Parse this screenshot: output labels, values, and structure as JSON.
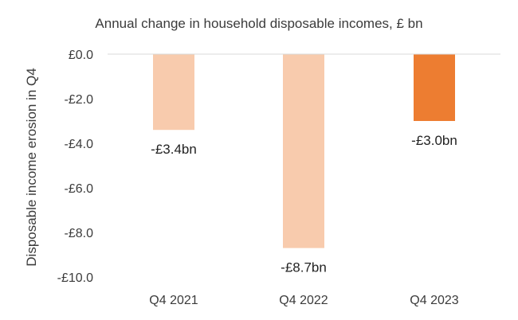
{
  "chart_data": {
    "type": "bar",
    "title": "Annual change in household disposable incomes, £ bn",
    "xlabel": "",
    "ylabel": "Disposable income erosion in Q4",
    "categories": [
      "Q4 2021",
      "Q4 2022",
      "Q4 2023"
    ],
    "values": [
      -3.4,
      -8.7,
      -3.0
    ],
    "data_labels": [
      "-£3.4bn",
      "-£8.7bn",
      "-£3.0bn"
    ],
    "ylim": [
      -10,
      0
    ],
    "yticks": [
      0,
      -2,
      -4,
      -6,
      -8,
      -10
    ],
    "ytick_labels": [
      "£0.0",
      "-£2.0",
      "-£4.0",
      "-£6.0",
      "-£8.0",
      "-£10.0"
    ],
    "bar_colors": [
      "#f8cbad",
      "#f8cbad",
      "#ed7d31"
    ],
    "grid": false,
    "zero_line_color": "#d9d9d9"
  }
}
